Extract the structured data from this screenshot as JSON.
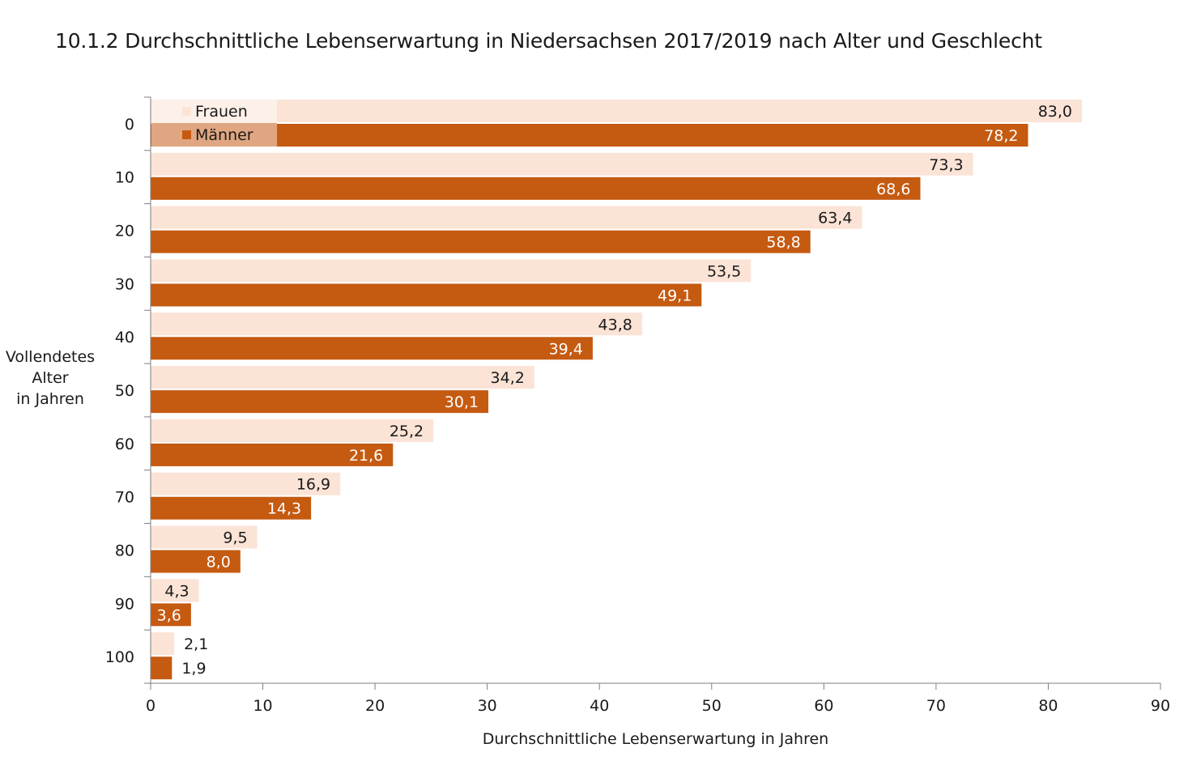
{
  "title": "10.1.2 Durchschnittliche Lebenserwartung in Niedersachsen 2017/2019 nach Alter und Geschlecht",
  "colors": {
    "frauen": "#fbe3d6",
    "maenner": "#c55a11",
    "legend_bg": "#fdf0e8",
    "legend_bg2": "#e0a681",
    "axis": "#7f7f7f"
  },
  "chart_data": {
    "type": "bar",
    "orientation": "horizontal",
    "title": "10.1.2 Durchschnittliche Lebenserwartung in Niedersachsen 2017/2019 nach Alter und Geschlecht",
    "xlabel": "Durchschnittliche Lebenserwartung in Jahren",
    "ylabel": [
      "Vollendetes",
      "Alter",
      "in Jahren"
    ],
    "categories": [
      "0",
      "10",
      "20",
      "30",
      "40",
      "50",
      "60",
      "70",
      "80",
      "90",
      "100"
    ],
    "series": [
      {
        "name": "Frauen",
        "values": [
          83.0,
          73.3,
          63.4,
          53.5,
          43.8,
          34.2,
          25.2,
          16.9,
          9.5,
          4.3,
          2.1
        ],
        "labels": [
          "83,0",
          "73,3",
          "63,4",
          "53,5",
          "43,8",
          "34,2",
          "25,2",
          "16,9",
          "9,5",
          "4,3",
          "2,1"
        ]
      },
      {
        "name": "Männer",
        "values": [
          78.2,
          68.6,
          58.8,
          49.1,
          39.4,
          30.1,
          21.6,
          14.3,
          8.0,
          3.6,
          1.9
        ],
        "labels": [
          "78,2",
          "68,6",
          "58,8",
          "49,1",
          "39,4",
          "30,1",
          "21,6",
          "14,3",
          "8,0",
          "3,6",
          "1,9"
        ]
      }
    ],
    "xlim": [
      0,
      90
    ],
    "xticks": [
      "0",
      "10",
      "20",
      "30",
      "40",
      "50",
      "60",
      "70",
      "80",
      "90"
    ],
    "grid": false,
    "legend": "top-left"
  }
}
